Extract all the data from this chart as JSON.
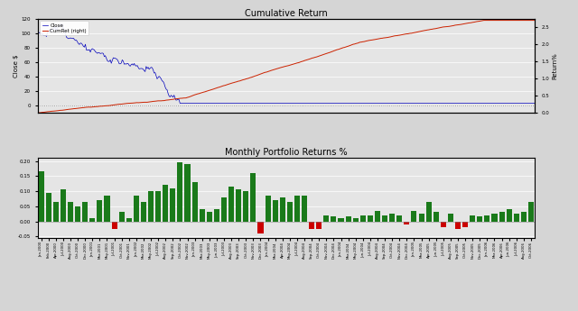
{
  "title_top": "Cumulative Return",
  "title_bottom": "Monthly Portfolio Returns %",
  "bg_color": "#d5d5d5",
  "plot_bg_color": "#e5e5e5",
  "close_color": "#0000bb",
  "cumret_color": "#cc2200",
  "bar_green": "#1a7a1a",
  "bar_red": "#cc0000",
  "close_label": "Close",
  "cumret_label": "CumRet (right)",
  "close_ylabel": "Close $",
  "cumret_ylabel": "Return%",
  "n_points": 500,
  "n_bars": 68,
  "ylim_close": [
    -10,
    120
  ],
  "ylim_cumret": [
    0.0,
    2.75
  ],
  "bar_ylim": [
    -0.055,
    0.21
  ],
  "bar_vals": [
    0.165,
    0.095,
    0.065,
    0.105,
    0.065,
    0.05,
    0.065,
    0.01,
    0.07,
    0.085,
    -0.025,
    0.03,
    0.01,
    0.085,
    0.065,
    0.1,
    0.1,
    0.12,
    0.11,
    0.195,
    0.19,
    0.13,
    0.04,
    0.03,
    0.04,
    0.08,
    0.115,
    0.105,
    0.1,
    0.16,
    -0.04,
    0.085,
    0.07,
    0.08,
    0.065,
    0.085,
    0.085,
    -0.025,
    -0.025,
    0.02,
    0.015,
    0.01,
    0.015,
    0.01,
    0.02,
    0.02,
    0.035,
    0.02,
    0.025,
    0.02,
    -0.01,
    0.035,
    0.025,
    0.065,
    0.03,
    -0.02,
    0.025,
    -0.025,
    -0.02,
    0.02,
    0.015,
    0.02,
    0.025,
    0.03,
    0.04,
    0.025,
    0.03,
    0.065
  ],
  "months": [
    "Jan-2000",
    "Feb-2000",
    "Apr-2000",
    "Jul-2000",
    "Aug-2000",
    "Oct-2000",
    "Dec-2000",
    "Jan-2001",
    "Mar-2001",
    "May-2001",
    "Jul-2001",
    "Oct-2001",
    "Nov-2001",
    "Jan-2002",
    "Mar-2002",
    "May-2002",
    "Jul-2002",
    "Aug-2002",
    "Sep-2002",
    "Oct-2002",
    "Nov-2002",
    "Jan-2003",
    "Mar-2003",
    "May-2003",
    "Jun-2003",
    "Jul-2003",
    "Aug-2003",
    "Sep-2003",
    "Oct-2003",
    "Nov-2003",
    "Dec-2003",
    "Jan-2004",
    "Mar-2004",
    "Apr-2004",
    "May-2004",
    "Jul-2004",
    "Aug-2004",
    "Sep-2004",
    "Oct-2004",
    "Nov-2004",
    "Dec-2004",
    "Jan-2004",
    "Mar-2004",
    "May-2004",
    "Jun-2004",
    "Jul-2004",
    "Aug-2004",
    "Sep-2004",
    "Oct-2004",
    "Nov-2004",
    "Dec-2004",
    "Jan-2005",
    "Mar-2005",
    "Apr-2005",
    "Jun-2005",
    "Jul-2005",
    "Aug-2005",
    "Sep-2005",
    "Oct-2005",
    "Nov-2005",
    "Dec-2005",
    "Jan-2006",
    "Mar-2006",
    "Apr-2006",
    "Jun-2006",
    "Jul-2006",
    "Aug-2006",
    "Oct-2006"
  ]
}
